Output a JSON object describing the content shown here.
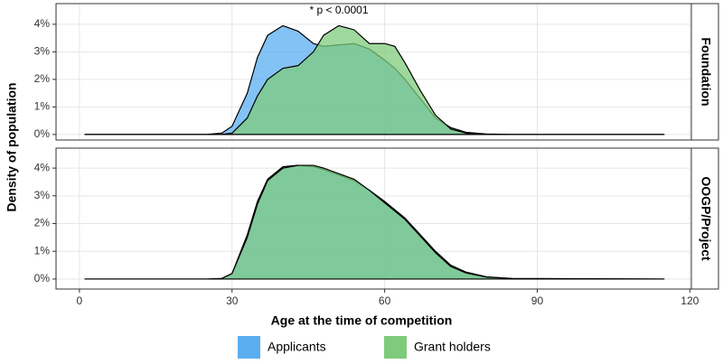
{
  "chart_data": [
    {
      "type": "area",
      "facet": "Foundation",
      "annotation": "* p < 0.0001",
      "ylabel": "Density of population",
      "x": [
        1,
        20,
        25,
        28,
        30,
        33,
        35,
        37,
        40,
        43,
        46,
        48,
        51,
        54,
        57,
        60,
        62,
        64,
        67,
        70,
        73,
        76,
        80,
        85,
        115
      ],
      "series": [
        {
          "name": "Applicants",
          "color": "#5aaef0",
          "values": [
            0,
            0,
            0,
            0.05,
            0.3,
            1.5,
            2.8,
            3.6,
            3.95,
            3.75,
            3.3,
            3.2,
            3.25,
            3.3,
            3.1,
            2.7,
            2.4,
            2.0,
            1.3,
            0.6,
            0.25,
            0.08,
            0.02,
            0,
            0
          ]
        },
        {
          "name": "Grant holders",
          "color": "#7fcb7c",
          "values": [
            0,
            0,
            0,
            0,
            0.05,
            0.6,
            1.4,
            2.0,
            2.4,
            2.5,
            3.0,
            3.6,
            3.95,
            3.8,
            3.3,
            3.3,
            3.2,
            2.6,
            1.6,
            0.7,
            0.2,
            0.05,
            0,
            0,
            0
          ]
        }
      ],
      "xlim": [
        -4.6,
        120.3
      ],
      "xticks": [
        0,
        30,
        60,
        90,
        120
      ],
      "ylim": [
        -0.2,
        4.75
      ],
      "yticks": [
        {
          "value": 0,
          "label": "0%"
        },
        {
          "value": 1,
          "label": "1%"
        },
        {
          "value": 2,
          "label": "2%"
        },
        {
          "value": 3,
          "label": "3%"
        },
        {
          "value": 4,
          "label": "4%"
        }
      ],
      "grid": true
    },
    {
      "type": "area",
      "facet": "OOGP/Project",
      "xlabel": "Age at the time of competition",
      "x": [
        1,
        20,
        25,
        28,
        30,
        33,
        35,
        37,
        40,
        43,
        46,
        48,
        51,
        54,
        57,
        60,
        62,
        64,
        67,
        70,
        73,
        76,
        80,
        85,
        115
      ],
      "series": [
        {
          "color": "#5aaef0",
          "values": [
            0,
            0,
            0,
            0.02,
            0.2,
            1.6,
            2.8,
            3.6,
            4.05,
            4.1,
            4.05,
            3.95,
            3.75,
            3.55,
            3.2,
            2.8,
            2.5,
            2.2,
            1.6,
            1.0,
            0.5,
            0.25,
            0.08,
            0.02,
            0
          ]
        },
        {
          "color": "#7fcb7c",
          "values": [
            0,
            0,
            0,
            0.02,
            0.2,
            1.5,
            2.7,
            3.55,
            4.0,
            4.1,
            4.1,
            4.0,
            3.8,
            3.6,
            3.2,
            2.75,
            2.45,
            2.15,
            1.55,
            0.95,
            0.45,
            0.22,
            0.07,
            0.02,
            0
          ]
        }
      ],
      "xlim": [
        -4.6,
        120.3
      ],
      "xticks": [
        0,
        30,
        60,
        90,
        120
      ],
      "ylim": [
        -0.36,
        4.72
      ],
      "yticks": [
        {
          "value": 0,
          "label": "0%"
        },
        {
          "value": 1,
          "label": "1%"
        },
        {
          "value": 2,
          "label": "2%"
        },
        {
          "value": 3,
          "label": "3%"
        },
        {
          "value": 4,
          "label": "4%"
        }
      ],
      "grid": true
    }
  ]
}
